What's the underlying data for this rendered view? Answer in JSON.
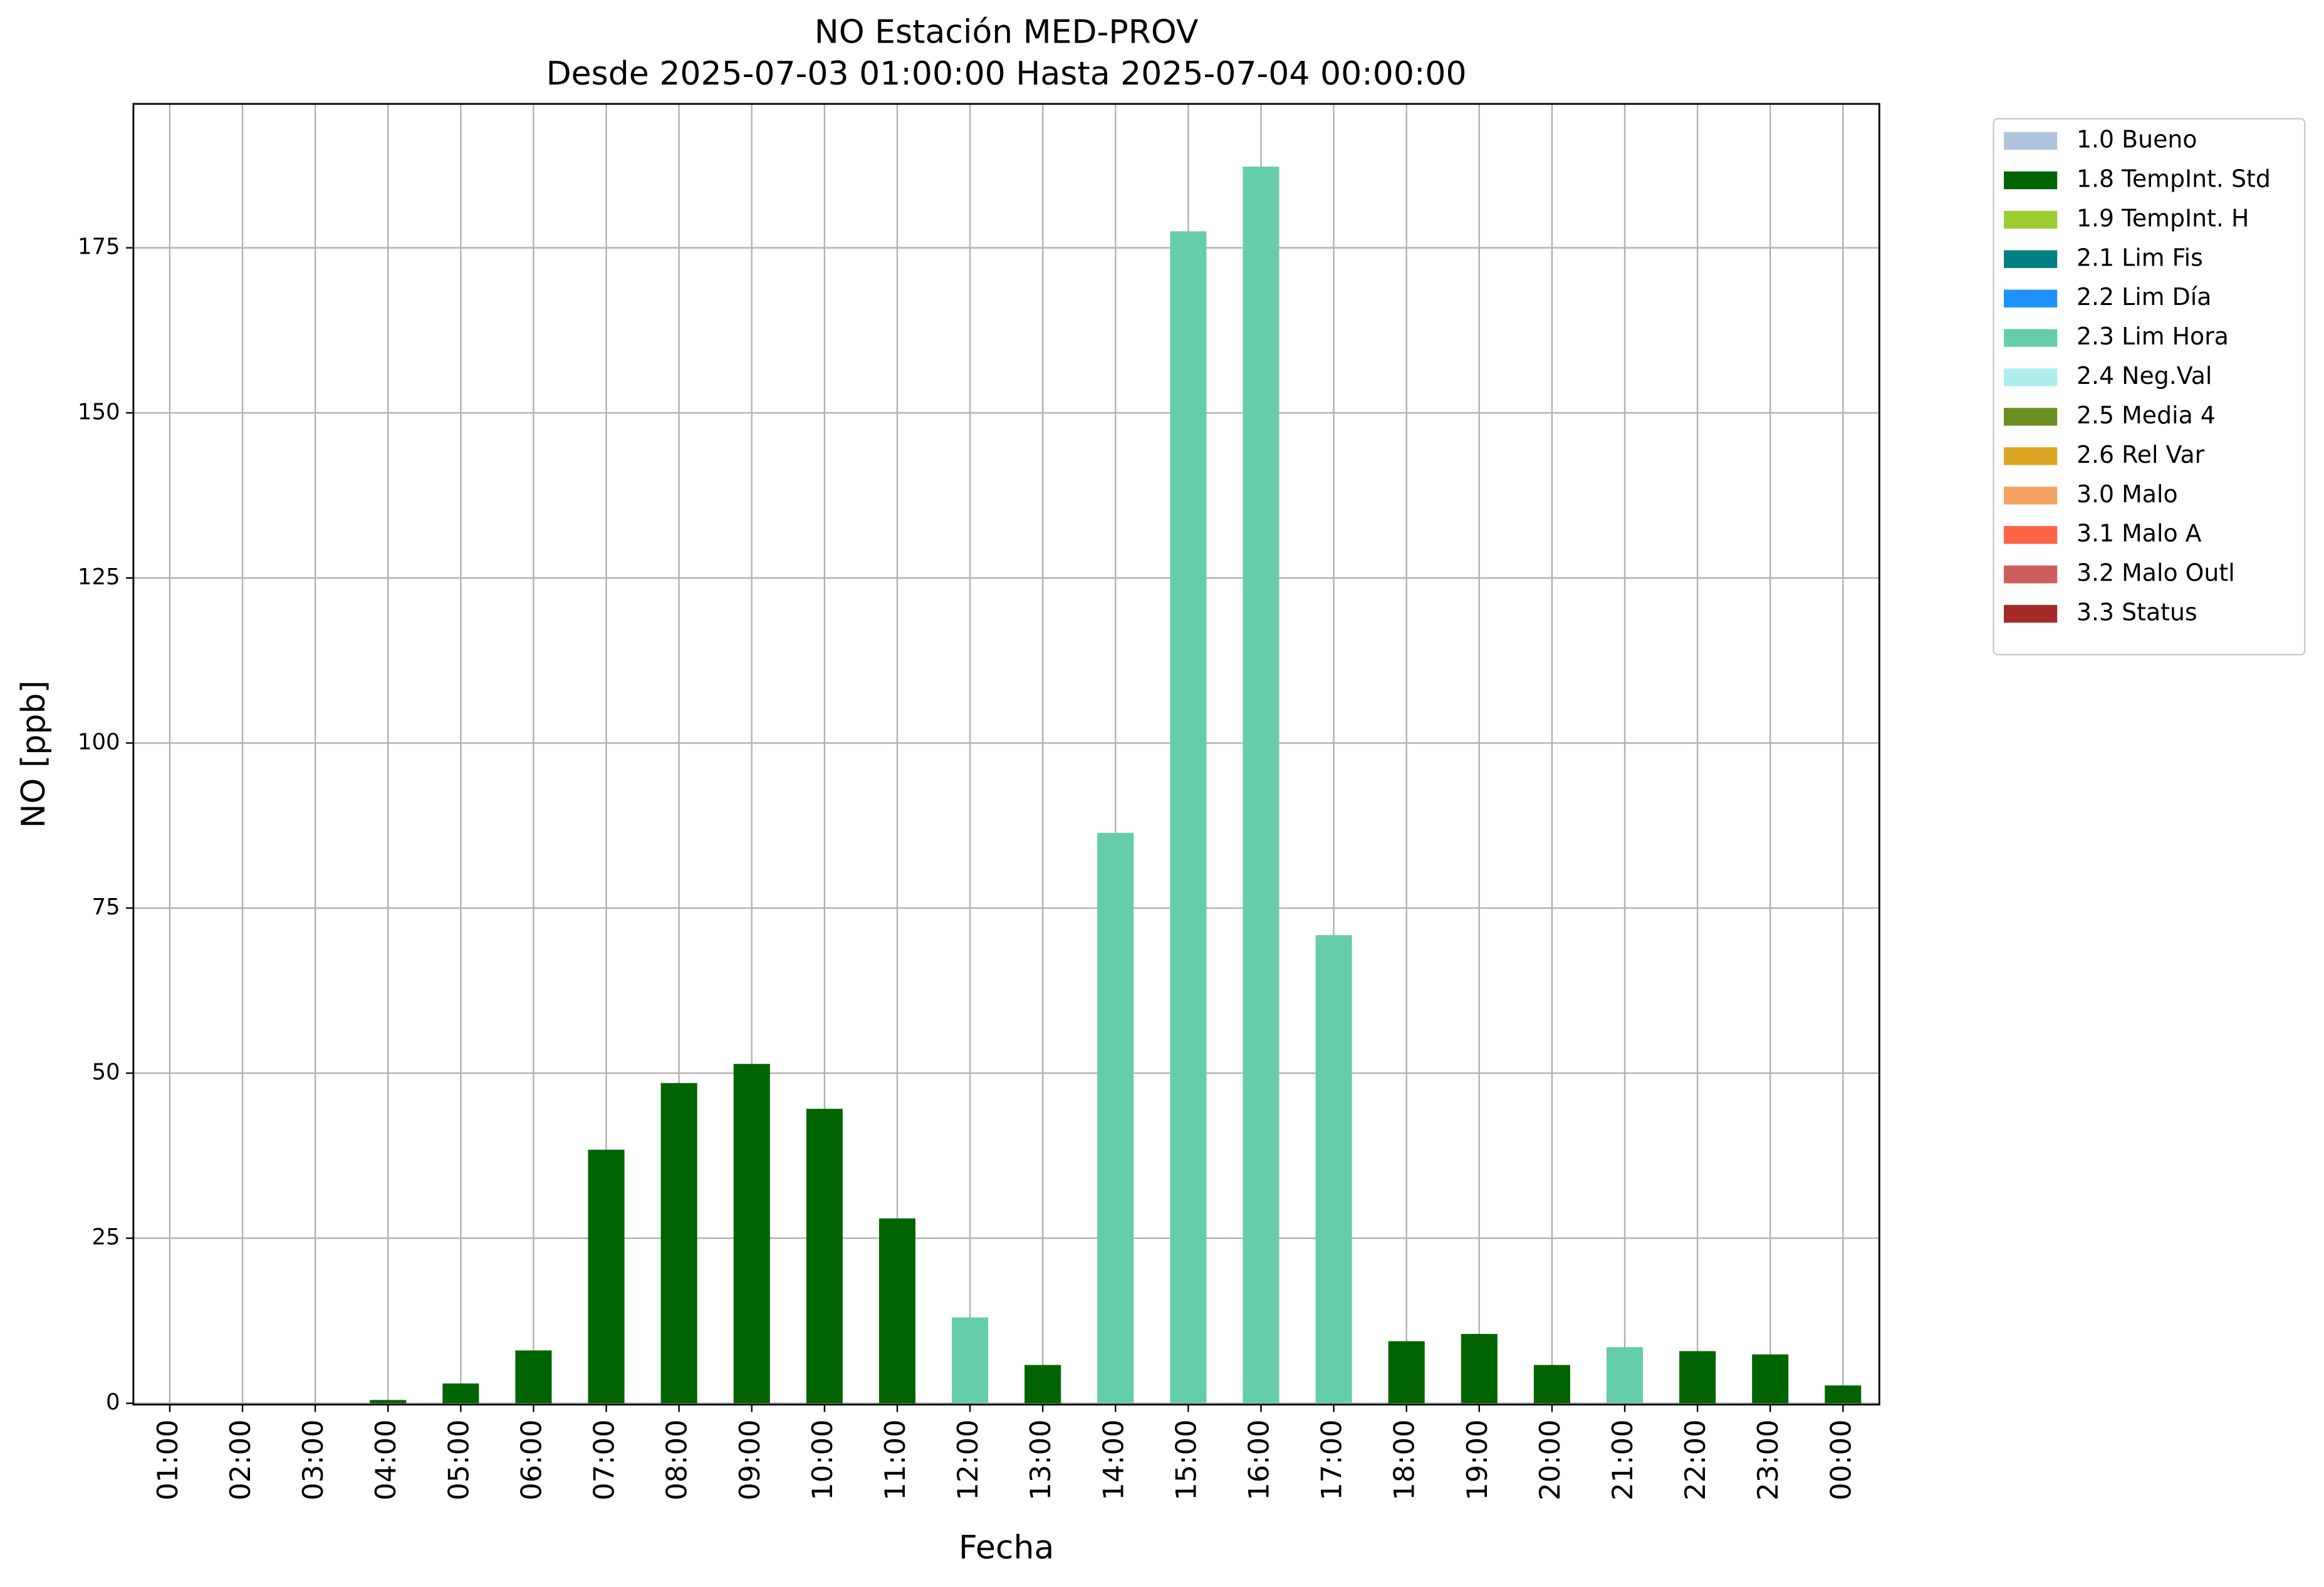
{
  "chart_data": {
    "type": "bar",
    "title": "NO Estación MED-PROV",
    "subtitle": "Desde 2025-07-03 01:00:00 Hasta 2025-07-04 00:00:00",
    "x_label": "Fecha",
    "y_label": "NO [ppb]",
    "categories": [
      "01:00",
      "02:00",
      "03:00",
      "04:00",
      "05:00",
      "06:00",
      "07:00",
      "08:00",
      "09:00",
      "10:00",
      "11:00",
      "12:00",
      "13:00",
      "14:00",
      "15:00",
      "16:00",
      "17:00",
      "18:00",
      "19:00",
      "20:00",
      "21:00",
      "22:00",
      "23:00",
      "00:00"
    ],
    "series": [
      {
        "name": "1.0 Bueno",
        "color": "#b0c4de",
        "values": [
          null,
          null,
          null,
          null,
          null,
          null,
          null,
          null,
          null,
          null,
          null,
          null,
          null,
          null,
          null,
          null,
          null,
          null,
          null,
          null,
          null,
          null,
          null,
          null
        ]
      },
      {
        "name": "1.8 TempInt. Std",
        "color": "#006400",
        "values": [
          0,
          0,
          0,
          0.5,
          3,
          8,
          38.4,
          48.5,
          51.4,
          44.6,
          28,
          null,
          5.8,
          null,
          null,
          null,
          null,
          9.4,
          10.5,
          5.8,
          null,
          7.9,
          7.4,
          2.7
        ]
      },
      {
        "name": "1.9 TempInt. H",
        "color": "#9acd32",
        "values": [
          null,
          null,
          null,
          null,
          null,
          null,
          null,
          null,
          null,
          null,
          null,
          null,
          null,
          null,
          null,
          null,
          null,
          null,
          null,
          null,
          null,
          null,
          null,
          null
        ]
      },
      {
        "name": "2.1 Lim Fis",
        "color": "#008080",
        "values": [
          null,
          null,
          null,
          null,
          null,
          null,
          null,
          null,
          null,
          null,
          null,
          null,
          null,
          null,
          null,
          null,
          null,
          null,
          null,
          null,
          null,
          null,
          null,
          null
        ]
      },
      {
        "name": "2.2 Lim Día",
        "color": "#1e90ff",
        "values": [
          null,
          null,
          null,
          null,
          null,
          null,
          null,
          null,
          null,
          null,
          null,
          null,
          null,
          null,
          null,
          null,
          null,
          null,
          null,
          null,
          null,
          null,
          null,
          null
        ]
      },
      {
        "name": "2.3 Lim Hora",
        "color": "#66cdaa",
        "values": [
          null,
          null,
          null,
          null,
          null,
          null,
          null,
          null,
          null,
          null,
          null,
          13,
          null,
          86.4,
          177.5,
          187.3,
          70.9,
          null,
          null,
          null,
          8.5,
          null,
          null,
          null
        ]
      },
      {
        "name": "2.4 Neg.Val",
        "color": "#afeeee",
        "values": [
          null,
          null,
          null,
          null,
          null,
          null,
          null,
          null,
          null,
          null,
          null,
          null,
          null,
          null,
          null,
          null,
          null,
          null,
          null,
          null,
          null,
          null,
          null,
          null
        ]
      },
      {
        "name": "2.5 Media 4",
        "color": "#6b8e23",
        "values": [
          null,
          null,
          null,
          null,
          null,
          null,
          null,
          null,
          null,
          null,
          null,
          null,
          null,
          null,
          null,
          null,
          null,
          null,
          null,
          null,
          null,
          null,
          null,
          null
        ]
      },
      {
        "name": "2.6 Rel Var",
        "color": "#daa520",
        "values": [
          null,
          null,
          null,
          null,
          null,
          null,
          null,
          null,
          null,
          null,
          null,
          null,
          null,
          null,
          null,
          null,
          null,
          null,
          null,
          null,
          null,
          null,
          null,
          null
        ]
      },
      {
        "name": "3.0 Malo",
        "color": "#f4a460",
        "values": [
          null,
          null,
          null,
          null,
          null,
          null,
          null,
          null,
          null,
          null,
          null,
          null,
          null,
          null,
          null,
          null,
          null,
          null,
          null,
          null,
          null,
          null,
          null,
          null
        ]
      },
      {
        "name": "3.1 Malo A",
        "color": "#ff6347",
        "values": [
          null,
          null,
          null,
          null,
          null,
          null,
          null,
          null,
          null,
          null,
          null,
          null,
          null,
          null,
          null,
          null,
          null,
          null,
          null,
          null,
          null,
          null,
          null,
          null
        ]
      },
      {
        "name": "3.2 Malo Outl",
        "color": "#cd5c5c",
        "values": [
          null,
          null,
          null,
          null,
          null,
          null,
          null,
          null,
          null,
          null,
          null,
          null,
          null,
          null,
          null,
          null,
          null,
          null,
          null,
          null,
          null,
          null,
          null,
          null
        ]
      },
      {
        "name": "3.3 Status",
        "color": "#a52a2a",
        "values": [
          null,
          null,
          null,
          null,
          null,
          null,
          null,
          null,
          null,
          null,
          null,
          null,
          null,
          null,
          null,
          null,
          null,
          null,
          null,
          null,
          null,
          null,
          null,
          null
        ]
      }
    ],
    "ylim": [
      -0.2,
      196.8
    ],
    "yticks": [
      0,
      25,
      50,
      75,
      100,
      125,
      150,
      175
    ],
    "grid": true,
    "legend": "outside-right"
  }
}
